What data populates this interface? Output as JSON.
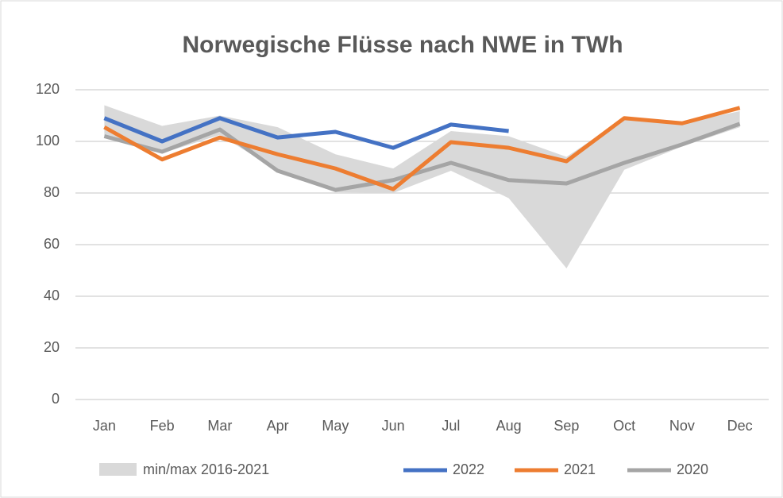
{
  "chart_data": {
    "type": "line",
    "title": "Norwegische Flüsse nach NWE in TWh",
    "categories": [
      "Jan",
      "Feb",
      "Mar",
      "Apr",
      "May",
      "Jun",
      "Jul",
      "Aug",
      "Sep",
      "Oct",
      "Nov",
      "Dec"
    ],
    "band": {
      "name": "min/max 2016-2021",
      "color": "#d9d9d9",
      "min": [
        102,
        95.4,
        102.5,
        88.6,
        80.3,
        80,
        88.6,
        78,
        50.8,
        89,
        98,
        105.5
      ],
      "max": [
        114,
        106,
        110,
        105.5,
        95,
        89.5,
        104,
        102,
        94,
        109,
        107,
        111.7
      ]
    },
    "series": [
      {
        "name": "2022",
        "color": "#4472c4",
        "values": [
          109,
          100,
          109,
          101.5,
          103.7,
          97.5,
          106.5,
          104,
          null,
          null,
          null,
          null
        ]
      },
      {
        "name": "2021",
        "color": "#ed7d31",
        "values": [
          105.5,
          93,
          101.5,
          95,
          89.5,
          81.5,
          99.7,
          97.5,
          92.3,
          109,
          107,
          113
        ]
      },
      {
        "name": "2020",
        "color": "#a5a5a5",
        "values": [
          102,
          96,
          104.6,
          88.6,
          81.2,
          85,
          91.7,
          85,
          83.7,
          91.7,
          98.8,
          106.8
        ]
      }
    ],
    "ylim": [
      0,
      120
    ],
    "yticks": [
      0,
      20,
      40,
      60,
      80,
      100,
      120
    ],
    "grid": true,
    "legend": "bottom"
  }
}
